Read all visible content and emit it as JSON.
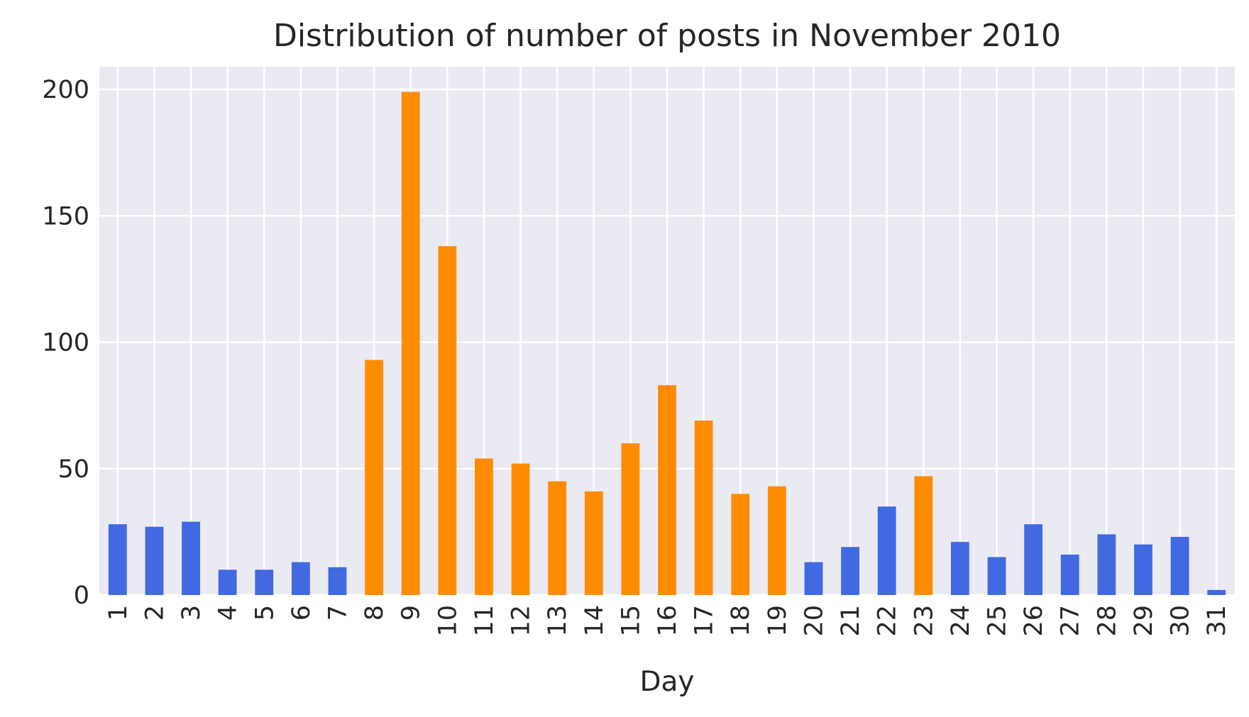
{
  "chart_data": {
    "type": "bar",
    "title": "Distribution of number of posts in November 2010",
    "xlabel": "Day",
    "ylabel": "",
    "categories": [
      "1",
      "2",
      "3",
      "4",
      "5",
      "6",
      "7",
      "8",
      "9",
      "10",
      "11",
      "12",
      "13",
      "14",
      "15",
      "16",
      "17",
      "18",
      "19",
      "20",
      "21",
      "22",
      "23",
      "24",
      "25",
      "26",
      "27",
      "28",
      "29",
      "30",
      "31"
    ],
    "values": [
      28,
      27,
      29,
      10,
      10,
      13,
      11,
      93,
      199,
      138,
      54,
      52,
      45,
      41,
      60,
      83,
      69,
      40,
      43,
      13,
      19,
      35,
      47,
      21,
      15,
      28,
      16,
      24,
      20,
      23,
      2
    ],
    "highlighted_days": [
      "8",
      "9",
      "10",
      "11",
      "12",
      "13",
      "14",
      "15",
      "16",
      "17",
      "18",
      "19",
      "23"
    ],
    "ylim": [
      0,
      209
    ],
    "yticks": [
      0,
      50,
      100,
      150,
      200
    ],
    "grid": true,
    "legend": "none",
    "colors": {
      "default_bar": "#4169e1",
      "highlight_bar": "#ff8c00",
      "plot_background": "#eaeaf2",
      "grid": "#ffffff",
      "text": "#262626"
    }
  }
}
